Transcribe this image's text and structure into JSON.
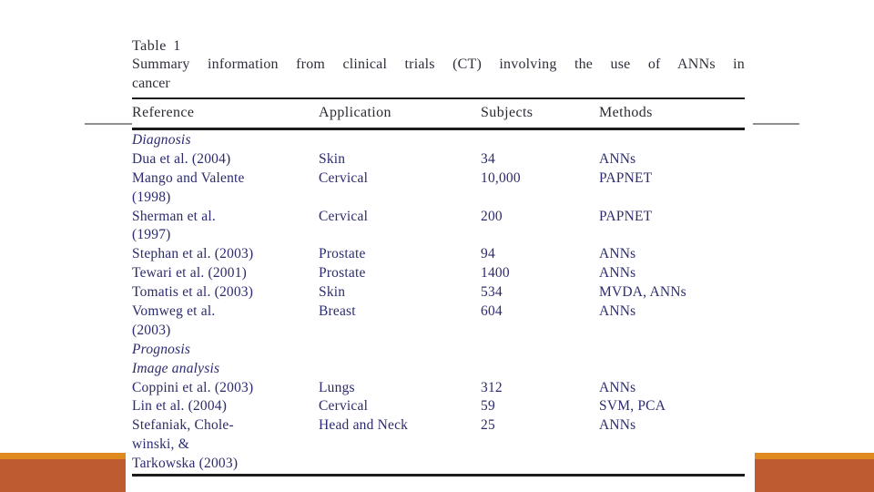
{
  "slide": {
    "background_color": "#ffffff",
    "divider_color": "#8f8f8f",
    "accent_bar": {
      "stripe_color": "#de8a1e",
      "body_color": "#be5b30"
    }
  },
  "table": {
    "caption": "Table 1",
    "title_line1": "Summary information from clinical trials (CT) involving the use of ANNs in",
    "title_line2": "cancer",
    "columns": [
      "Reference",
      "Application",
      "Subjects",
      "Methods"
    ],
    "rows": [
      {
        "type": "section",
        "label": "Diagnosis"
      },
      {
        "type": "data",
        "reference": "Dua et al. (2004)",
        "application": "Skin",
        "subjects": "34",
        "methods": "ANNs"
      },
      {
        "type": "data",
        "reference": "Mango and Valente",
        "application": "Cervical",
        "subjects": "10,000",
        "methods": "PAPNET"
      },
      {
        "type": "data",
        "reference": "(1998)",
        "application": "",
        "subjects": "",
        "methods": ""
      },
      {
        "type": "data",
        "reference": "Sherman et al.",
        "application": "Cervical",
        "subjects": "200",
        "methods": "PAPNET"
      },
      {
        "type": "data",
        "reference": "(1997)",
        "application": "",
        "subjects": "",
        "methods": ""
      },
      {
        "type": "data",
        "reference": "Stephan et al. (2003)",
        "application": "Prostate",
        "subjects": "94",
        "methods": "ANNs"
      },
      {
        "type": "data",
        "reference": "Tewari et al. (2001)",
        "application": "Prostate",
        "subjects": "1400",
        "methods": "ANNs"
      },
      {
        "type": "data",
        "reference": "Tomatis et al. (2003)",
        "application": "Skin",
        "subjects": "534",
        "methods": "MVDA, ANNs"
      },
      {
        "type": "data",
        "reference": "Vomweg et al.",
        "application": "Breast",
        "subjects": "604",
        "methods": "ANNs"
      },
      {
        "type": "data",
        "reference": "(2003)",
        "application": "",
        "subjects": "",
        "methods": ""
      },
      {
        "type": "section",
        "label": "Prognosis"
      },
      {
        "type": "section",
        "label": "Image analysis"
      },
      {
        "type": "data",
        "reference": "Coppini et al. (2003)",
        "application": "Lungs",
        "subjects": "312",
        "methods": "ANNs"
      },
      {
        "type": "data",
        "reference": "Lin et al. (2004)",
        "application": "Cervical",
        "subjects": "59",
        "methods": "SVM, PCA"
      },
      {
        "type": "data",
        "reference": "Stefaniak, Chole-",
        "application": "Head and Neck",
        "subjects": "25",
        "methods": "ANNs"
      },
      {
        "type": "data",
        "reference": "winski, &",
        "application": "",
        "subjects": "",
        "methods": ""
      },
      {
        "type": "data",
        "reference": "Tarkowska (2003)",
        "application": "",
        "subjects": "",
        "methods": ""
      }
    ]
  }
}
